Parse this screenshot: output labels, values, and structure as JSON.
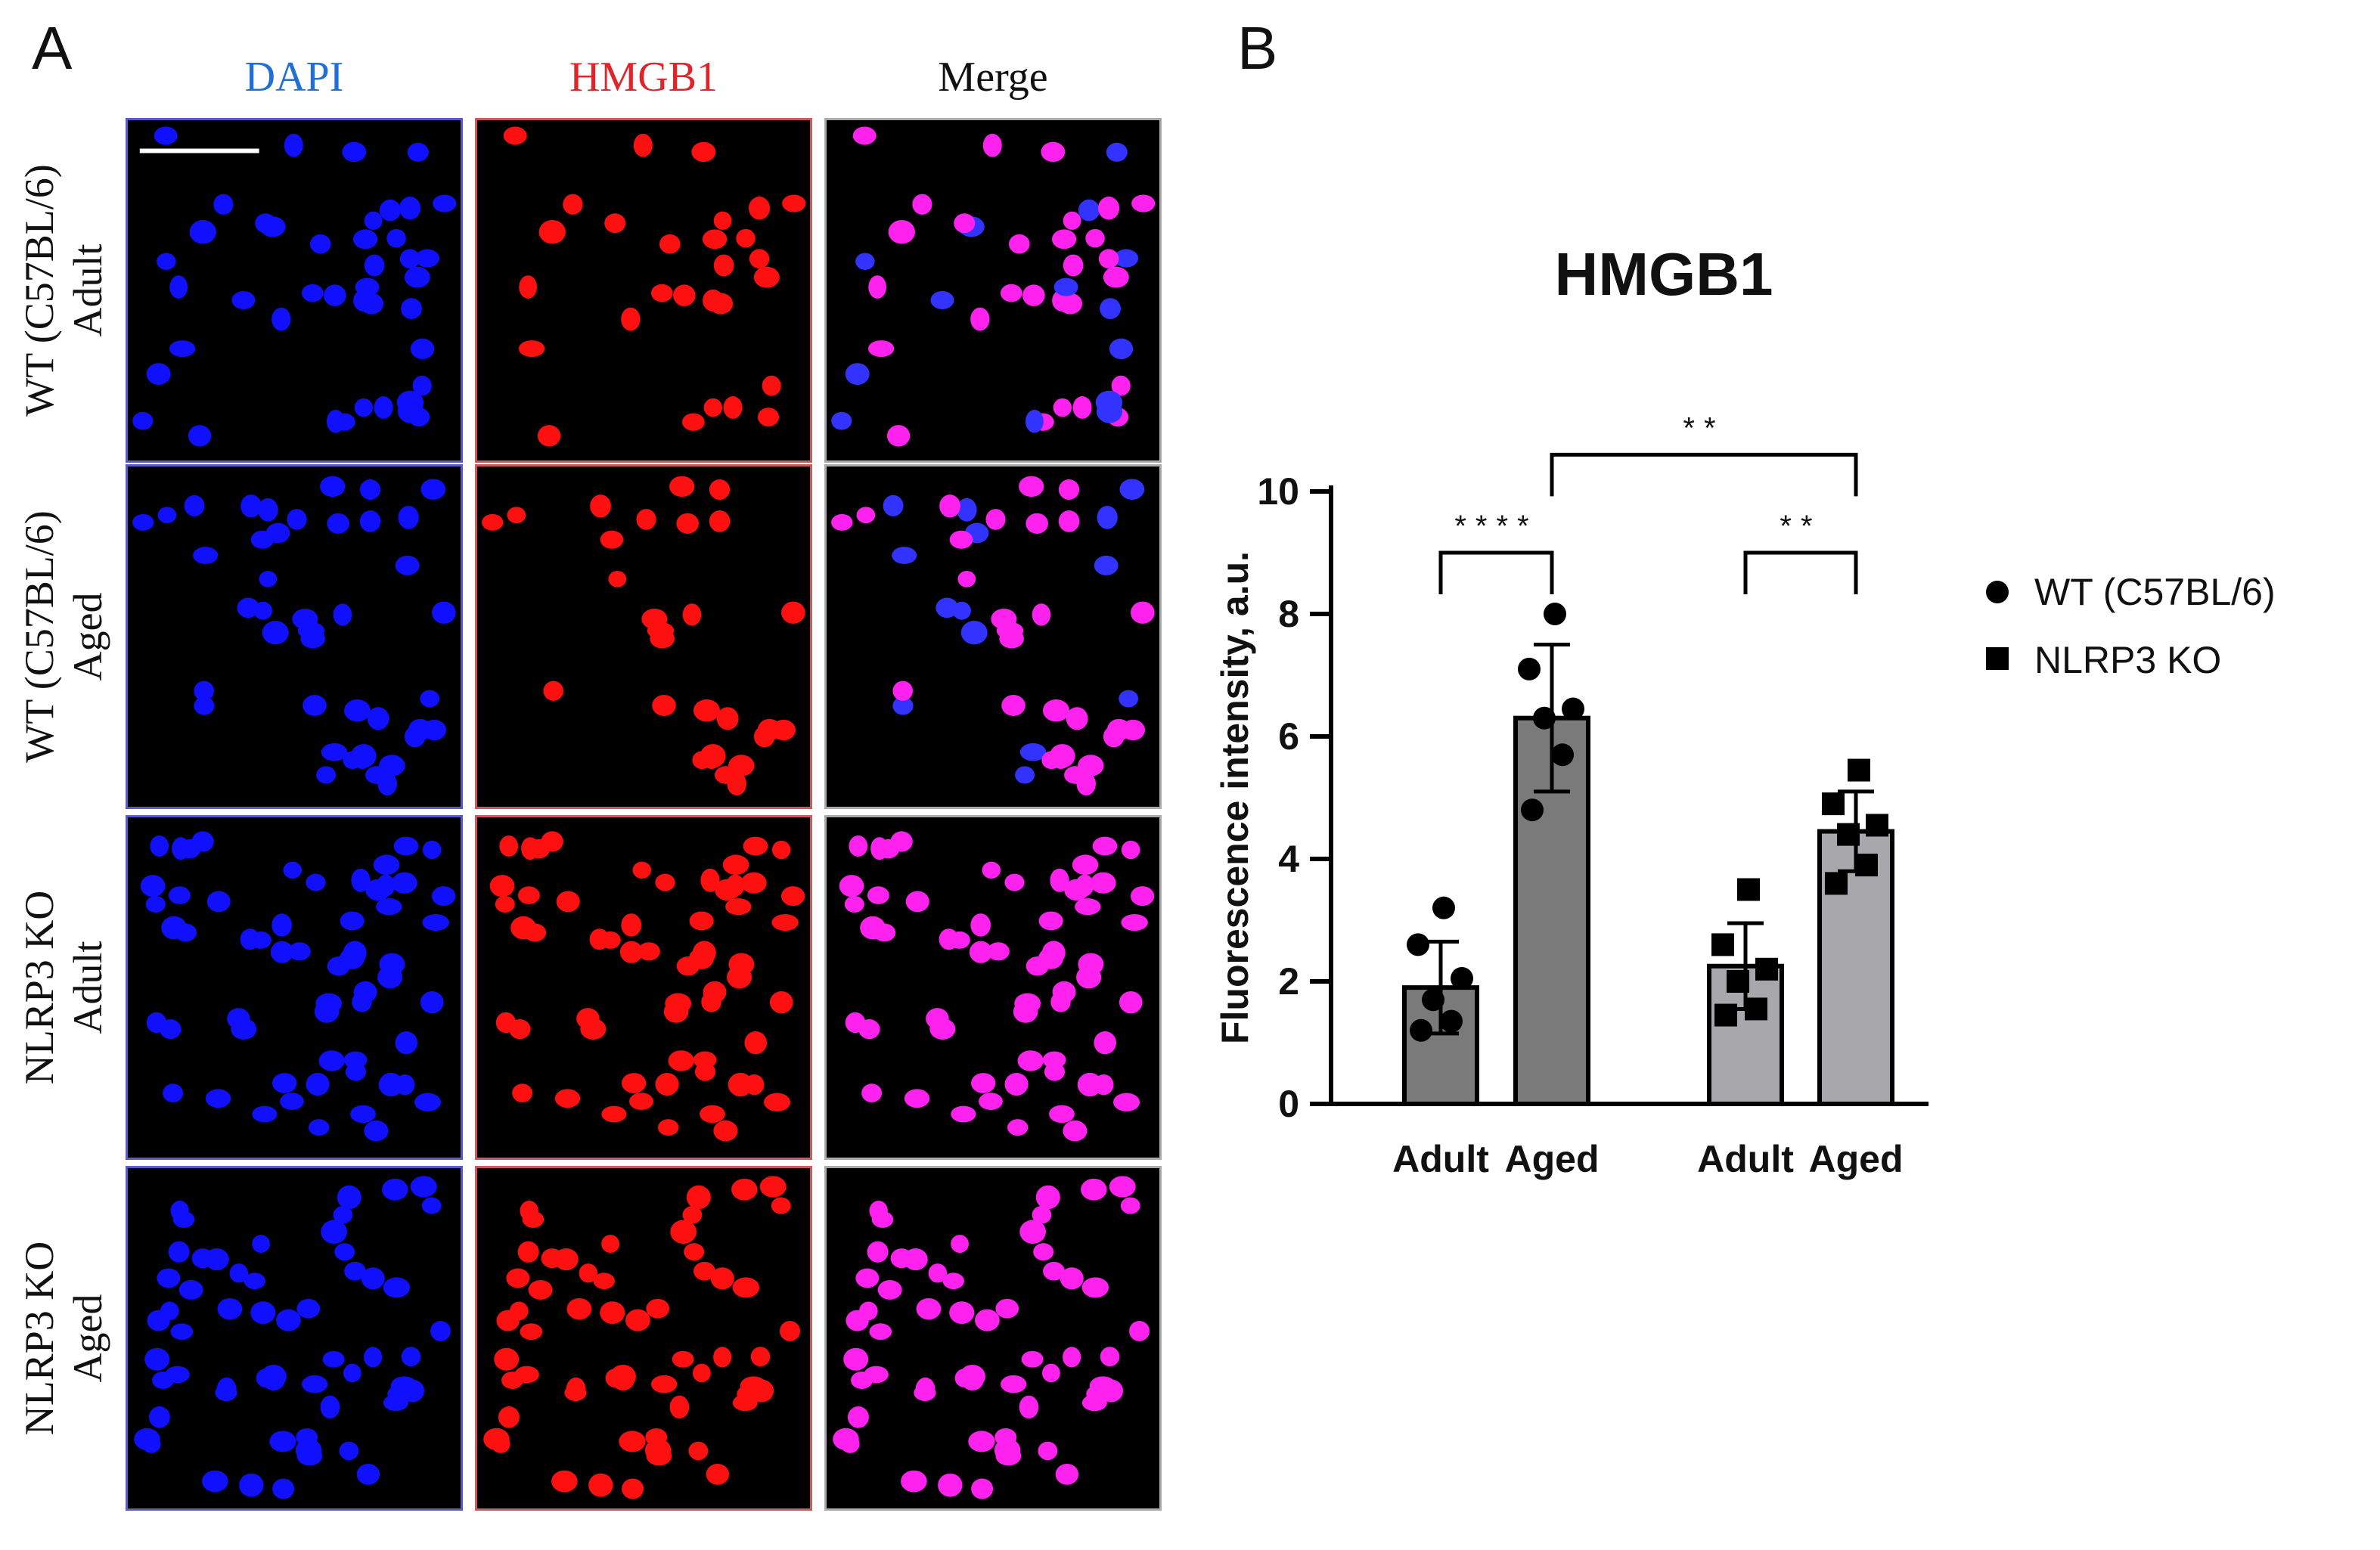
{
  "panel_a": {
    "letter": "A",
    "columns": [
      {
        "title": "DAPI",
        "color": "#1f6fd6"
      },
      {
        "title": "HMGB1",
        "color": "#e0242a"
      },
      {
        "title": "Merge",
        "color": "#111111"
      }
    ],
    "rows": [
      {
        "line1": "WT (C57BL/6)",
        "line2": "Adult"
      },
      {
        "line1": "WT (C57BL/6)",
        "line2": "Aged"
      },
      {
        "line1": "NLRP3 KO",
        "line2": "Adult"
      },
      {
        "line1": "NLRP3 KO",
        "line2": "Aged"
      }
    ],
    "channel_colors": {
      "dapi": "#1010ff",
      "hmgb1": "#ff1010",
      "merge": "#ff22ee"
    }
  },
  "panel_b": {
    "letter": "B"
  },
  "chart_data": {
    "type": "bar",
    "title": "HMGB1",
    "ylabel": "Fluorescence intensity, a.u.",
    "xlabel": "",
    "ylim": [
      0,
      10
    ],
    "yticks": [
      0,
      2,
      4,
      6,
      8,
      10
    ],
    "categories": [
      "Adult",
      "Aged",
      "Adult",
      "Aged"
    ],
    "bars": [
      {
        "group": "WT (C57BL/6)",
        "category": "Adult",
        "mean": 1.9,
        "sd": 0.75,
        "points": [
          1.2,
          1.35,
          1.7,
          2.05,
          2.6,
          3.2
        ],
        "color": "#7a7a7a"
      },
      {
        "group": "WT (C57BL/6)",
        "category": "Aged",
        "mean": 6.3,
        "sd": 1.2,
        "points": [
          4.8,
          5.7,
          6.3,
          6.45,
          7.1,
          8.0
        ],
        "color": "#7a7a7a"
      },
      {
        "group": "NLRP3 KO",
        "category": "Adult",
        "mean": 2.25,
        "sd": 0.7,
        "points": [
          1.45,
          1.55,
          2.0,
          2.2,
          2.6,
          3.5
        ],
        "color": "#a8a8ac"
      },
      {
        "group": "NLRP3 KO",
        "category": "Aged",
        "mean": 4.45,
        "sd": 0.65,
        "points": [
          3.6,
          3.9,
          4.4,
          4.55,
          4.9,
          5.45
        ],
        "color": "#a8a8ac"
      }
    ],
    "significance": [
      {
        "from": 0,
        "to": 1,
        "label": "****",
        "y": 9.0
      },
      {
        "from": 2,
        "to": 3,
        "label": "**",
        "y": 9.0
      },
      {
        "from": 1,
        "to": 3,
        "label": "**",
        "y": 10.6
      }
    ],
    "legend": {
      "placement": "right",
      "entries": [
        {
          "label": "WT (C57BL/6)",
          "marker": "circle"
        },
        {
          "label": "NLRP3 KO",
          "marker": "square"
        }
      ]
    }
  }
}
